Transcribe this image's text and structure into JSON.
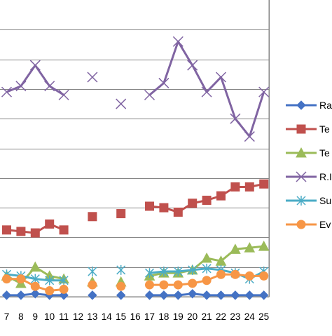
{
  "chart_data": {
    "type": "line",
    "title": "",
    "xlabel": "",
    "ylabel": "",
    "categories": [
      "7",
      "8",
      "9",
      "10",
      "11",
      "12",
      "13",
      "14",
      "15",
      "16",
      "17",
      "18",
      "19",
      "20",
      "21",
      "22",
      "23",
      "24",
      "25"
    ],
    "ylim": [
      0,
      10
    ],
    "grid": true,
    "legend_position": "right",
    "series": [
      {
        "name": "Ra",
        "color": "#4472C4",
        "marker": "diamond",
        "values": [
          0.05,
          0.05,
          0.1,
          0.05,
          0.05,
          null,
          0.05,
          null,
          0.05,
          null,
          0.05,
          0.05,
          0.05,
          0.1,
          0.05,
          0.05,
          0.05,
          0.05,
          0.05
        ]
      },
      {
        "name": "Te",
        "color": "#C0504D",
        "marker": "square",
        "values": [
          2.25,
          2.2,
          2.15,
          2.45,
          2.25,
          null,
          2.7,
          null,
          2.8,
          null,
          3.05,
          3.0,
          2.85,
          3.15,
          3.25,
          3.4,
          3.7,
          3.7,
          3.8
        ]
      },
      {
        "name": "Te",
        "color": "#9BBB59",
        "marker": "triangle",
        "values": [
          0.7,
          0.45,
          1.0,
          0.7,
          0.6,
          null,
          0.5,
          null,
          0.5,
          null,
          0.7,
          0.8,
          0.8,
          0.9,
          1.3,
          1.2,
          1.6,
          1.65,
          1.7
        ]
      },
      {
        "name": "R.I",
        "color": "#8064A2",
        "marker": "x",
        "values": [
          6.9,
          7.1,
          7.8,
          7.1,
          6.8,
          null,
          7.4,
          null,
          6.5,
          null,
          6.8,
          7.2,
          8.6,
          7.8,
          6.9,
          7.4,
          6.0,
          5.4,
          6.9
        ]
      },
      {
        "name": "Su",
        "color": "#4BACC6",
        "marker": "star",
        "values": [
          0.75,
          0.7,
          0.6,
          0.55,
          0.55,
          null,
          0.85,
          null,
          0.9,
          null,
          0.8,
          0.85,
          0.85,
          0.9,
          0.95,
          0.9,
          0.8,
          0.6,
          0.85
        ]
      },
      {
        "name": "Ev",
        "color": "#F79646",
        "marker": "circle",
        "values": [
          0.6,
          0.6,
          0.35,
          0.2,
          0.25,
          null,
          0.4,
          null,
          0.35,
          null,
          0.4,
          0.4,
          0.4,
          0.45,
          0.55,
          0.75,
          0.75,
          0.7,
          0.7
        ]
      }
    ]
  }
}
